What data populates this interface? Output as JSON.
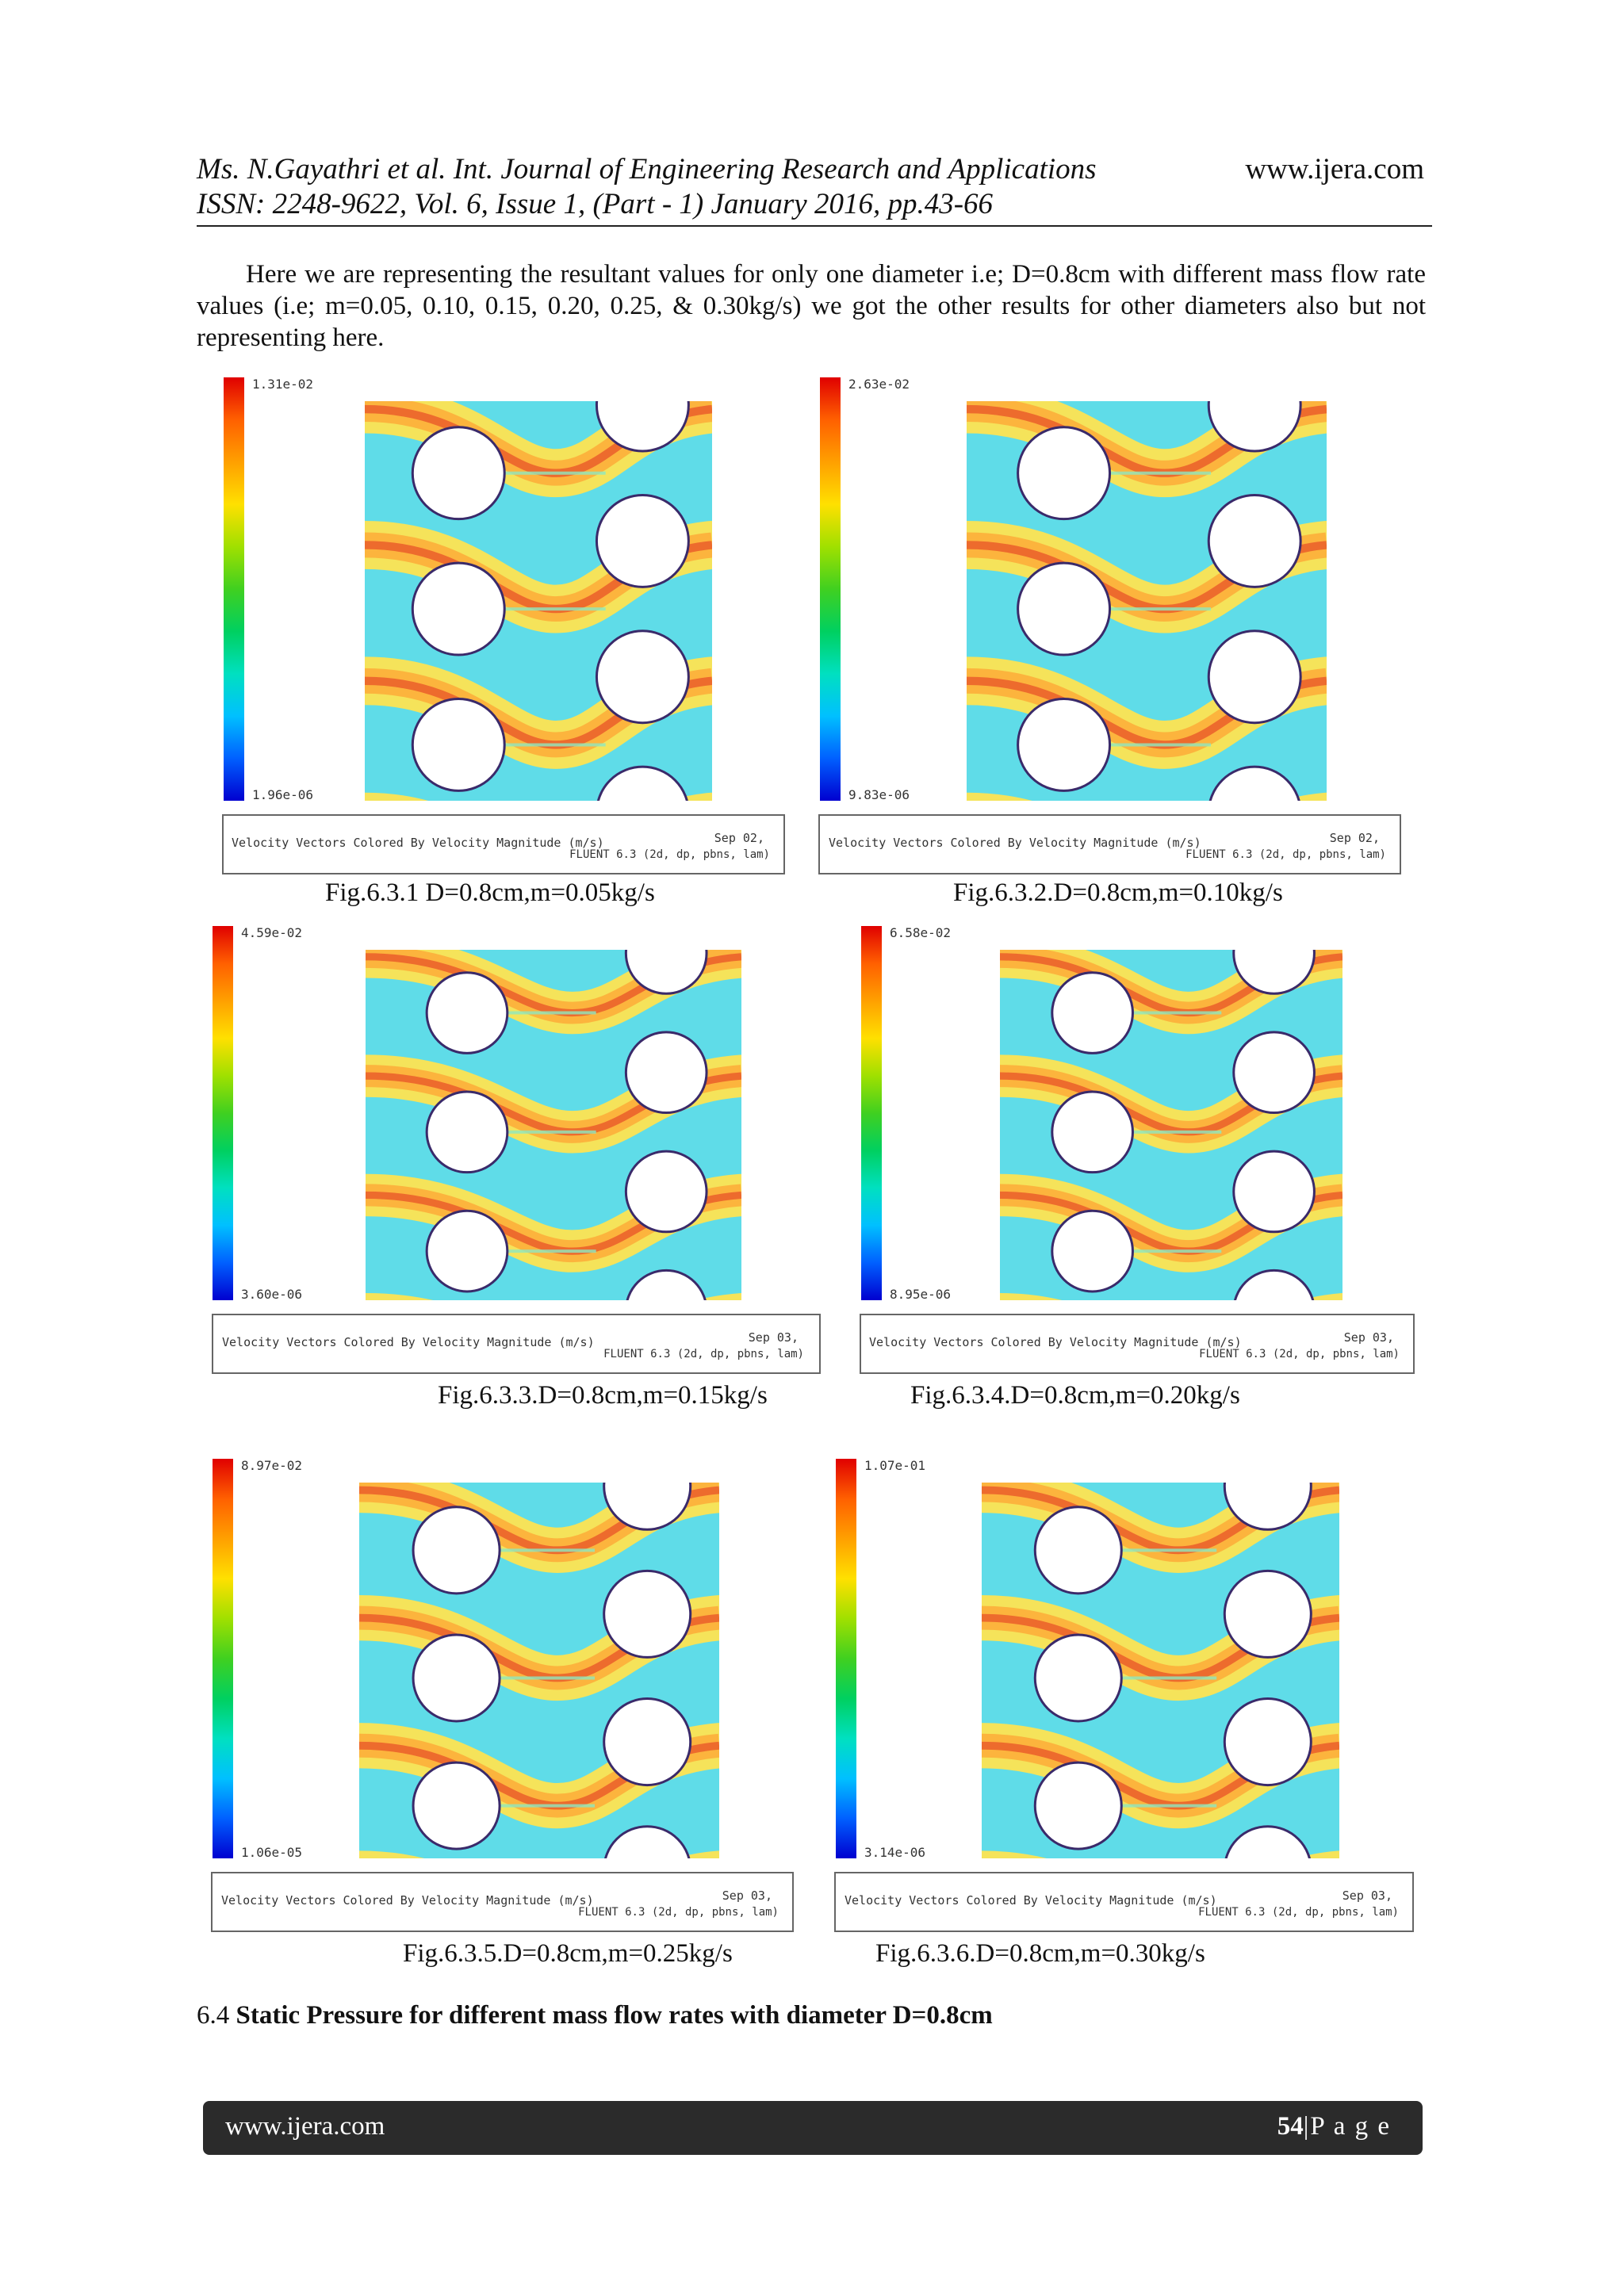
{
  "header": {
    "authors_journal": "Ms. N.Gayathri et al. Int. Journal of Engineering Research and Applications",
    "issn_line": "ISSN: 2248-9622, Vol. 6, Issue 1, (Part - 1) January 2016, pp.43-66",
    "website": "www.ijera.com"
  },
  "body_text": "Here we are representing the resultant values for only one diameter i.e; D=0.8cm with different mass flow rate values (i.e; m=0.05, 0.10, 0.15, 0.20, 0.25, & 0.30kg/s) we got the other results for other diameters also but not representing here.",
  "figures": [
    {
      "caption": "Fig.6.3.1 D=0.8cm,m=0.05kg/s",
      "max": "1.31e-02",
      "min": "1.96e-06",
      "title": "Velocity Vectors Colored By Velocity Magnitude (m/s)",
      "date": "Sep 02,",
      "solver": "FLUENT 6.3 (2d, dp, pbns, lam)"
    },
    {
      "caption": "Fig.6.3.2.D=0.8cm,m=0.10kg/s",
      "max": "2.63e-02",
      "min": "9.83e-06",
      "title": "Velocity Vectors Colored By Velocity Magnitude (m/s)",
      "date": "Sep 02,",
      "solver": "FLUENT 6.3 (2d, dp, pbns, lam)"
    },
    {
      "caption": "Fig.6.3.3.D=0.8cm,m=0.15kg/s",
      "max": "4.59e-02",
      "min": "3.60e-06",
      "title": "Velocity Vectors Colored By Velocity Magnitude (m/s)",
      "date": "Sep 03,",
      "solver": "FLUENT 6.3 (2d, dp, pbns, lam)"
    },
    {
      "caption": "Fig.6.3.4.D=0.8cm,m=0.20kg/s",
      "max": "6.58e-02",
      "min": "8.95e-06",
      "title": "Velocity Vectors Colored By Velocity Magnitude (m/s)",
      "date": "Sep 03,",
      "solver": "FLUENT 6.3 (2d, dp, pbns, lam)"
    },
    {
      "caption": "Fig.6.3.5.D=0.8cm,m=0.25kg/s",
      "max": "8.97e-02",
      "min": "1.06e-05",
      "title": "Velocity Vectors Colored By Velocity Magnitude (m/s)",
      "date": "Sep 03,",
      "solver": "FLUENT 6.3 (2d, dp, pbns, lam)"
    },
    {
      "caption": "Fig.6.3.6.D=0.8cm,m=0.30kg/s",
      "max": "1.07e-01",
      "min": "3.14e-06",
      "title": "Velocity Vectors Colored By Velocity Magnitude (m/s)",
      "date": "Sep 03,",
      "solver": "FLUENT 6.3 (2d, dp, pbns, lam)"
    }
  ],
  "section": {
    "number": "6.4",
    "title": "Static Pressure for different mass flow rates with diameter D=0.8cm"
  },
  "footer": {
    "website": "www.ijera.com",
    "page_number": "54",
    "page_label": "|P a g e"
  },
  "colors": {
    "colormap": [
      "#0000d0",
      "#0060ff",
      "#00c0ff",
      "#00e0c0",
      "#00d060",
      "#40d020",
      "#a0e000",
      "#ffe000",
      "#ffa000",
      "#ff6000",
      "#e00000"
    ],
    "flow_background": "#5fdce8",
    "flow_band": "#f5e35a",
    "flow_core": "#e03020",
    "footer_bar": "#2b2b2b"
  }
}
